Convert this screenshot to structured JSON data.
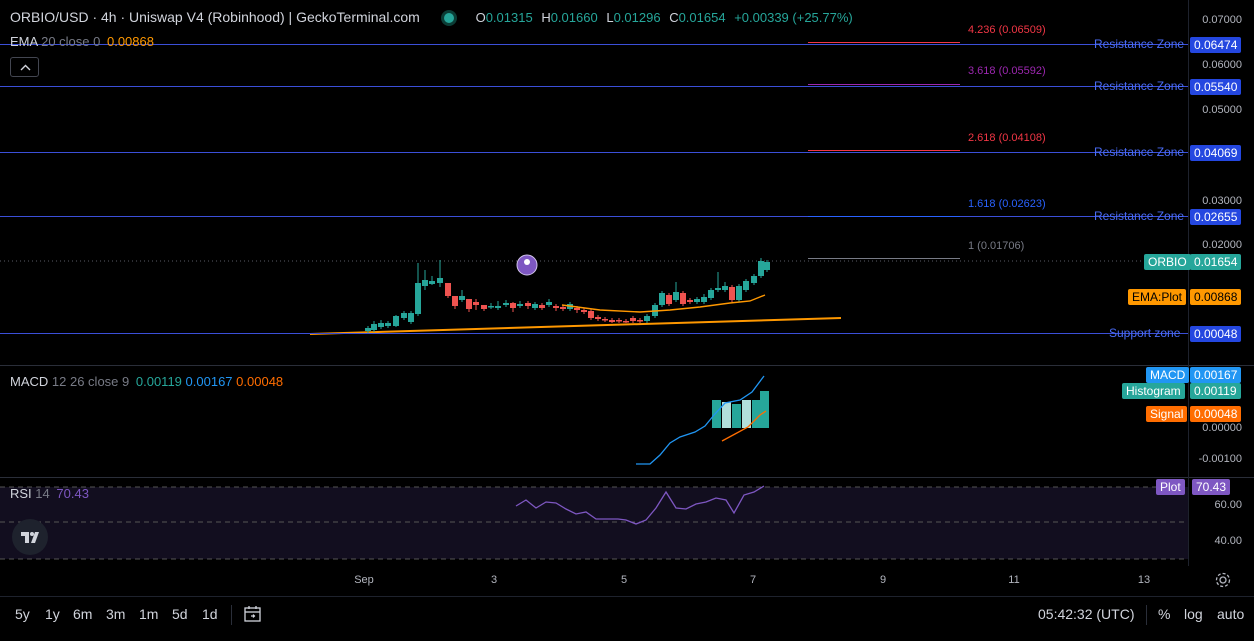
{
  "header": {
    "title": "ORBIO/USD · 4h · Uniswap V4 (Robinhood) | GeckoTerminal.com",
    "o_label": "O",
    "o_val": "0.01315",
    "h_label": "H",
    "h_val": "0.01660",
    "l_label": "L",
    "l_val": "0.01296",
    "c_label": "C",
    "c_val": "0.01654",
    "change": "+0.00339 (+25.77%)"
  },
  "ema_legend": {
    "name": "EMA",
    "params": "20 close 0",
    "value": "0.00868"
  },
  "macd_legend": {
    "name": "MACD",
    "params": "12 26 close 9",
    "v1": "0.00119",
    "v2": "0.00167",
    "v3": "0.00048"
  },
  "rsi_legend": {
    "name": "RSI",
    "params": "14",
    "value": "70.43"
  },
  "price_ticks": [
    "0.07000",
    "0.06000",
    "0.05000",
    "0.03000",
    "0.02000"
  ],
  "zones": [
    {
      "label": "Resistance Zone",
      "value": "0.06474"
    },
    {
      "label": "Resistance Zone",
      "value": "0.05540"
    },
    {
      "label": "Resistance Zone",
      "value": "0.04069"
    },
    {
      "label": "Resistance Zone",
      "value": "0.02655"
    },
    {
      "label": "Support zone",
      "value": "0.00048"
    }
  ],
  "fibs": [
    {
      "text": "4.236 (0.06509)",
      "color": "#f23645"
    },
    {
      "text": "3.618 (0.05592)",
      "color": "#9c27b0"
    },
    {
      "text": "2.618 (0.04108)",
      "color": "#f23645"
    },
    {
      "text": "1.618 (0.02623)",
      "color": "#2962ff"
    },
    {
      "text": "1 (0.01706)",
      "color": "#787b86"
    }
  ],
  "tags": {
    "orbio_label": "ORBIO",
    "orbio_value": "0.01654",
    "ema_label": "EMA:Plot",
    "ema_value": "0.00868",
    "macd_label": "MACD",
    "macd_value": "0.00167",
    "hist_label": "Histogram",
    "hist_value": "0.00119",
    "signal_label": "Signal",
    "signal_value": "0.00048",
    "rsi_label": "Plot",
    "rsi_value": "70.43"
  },
  "macd_ticks": [
    "0.00000",
    "-0.00100"
  ],
  "rsi_ticks": [
    "60.00",
    "40.00"
  ],
  "time_ticks": [
    "Sep",
    "3",
    "5",
    "7",
    "9",
    "11",
    "13"
  ],
  "ranges": [
    "5y",
    "1y",
    "6m",
    "3m",
    "1m",
    "5d",
    "1d"
  ],
  "clock": "05:42:32 (UTC)",
  "footer_opts": [
    "%",
    "log",
    "auto"
  ],
  "colors": {
    "up": "#26a69a",
    "down": "#ef5350",
    "ema": "#ff9800",
    "macd": "#2962ff",
    "signal": "#ff6d00",
    "rsi": "#7e57c2",
    "zone": "#3b4fd8"
  }
}
